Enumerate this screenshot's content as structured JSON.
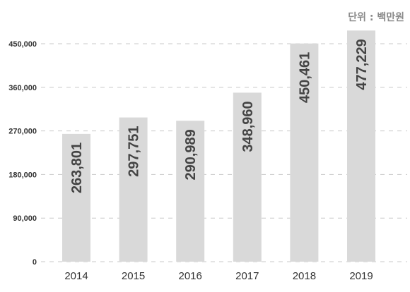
{
  "unit_label": "단위 : 백만원",
  "colors": {
    "bar": "#d9d9d9",
    "grid": "#c8c8c8",
    "text": "#333333",
    "value_label": "#444444"
  },
  "chart_data": {
    "type": "bar",
    "categories": [
      "2014",
      "2015",
      "2016",
      "2017",
      "2018",
      "2019"
    ],
    "values": [
      263801,
      297751,
      290989,
      348960,
      450461,
      477229
    ],
    "value_labels": [
      "263,801",
      "297,751",
      "290,989",
      "348,960",
      "450,461",
      "477,229"
    ],
    "ylim": [
      0,
      450000
    ],
    "yticks": [
      0,
      90000,
      180000,
      270000,
      360000,
      450000
    ],
    "ytick_labels": [
      "0",
      "90,000",
      "180,000",
      "270,000",
      "360,000",
      "450,000"
    ],
    "grid": "horizontal dashed",
    "title": "",
    "xlabel": "",
    "ylabel": ""
  }
}
